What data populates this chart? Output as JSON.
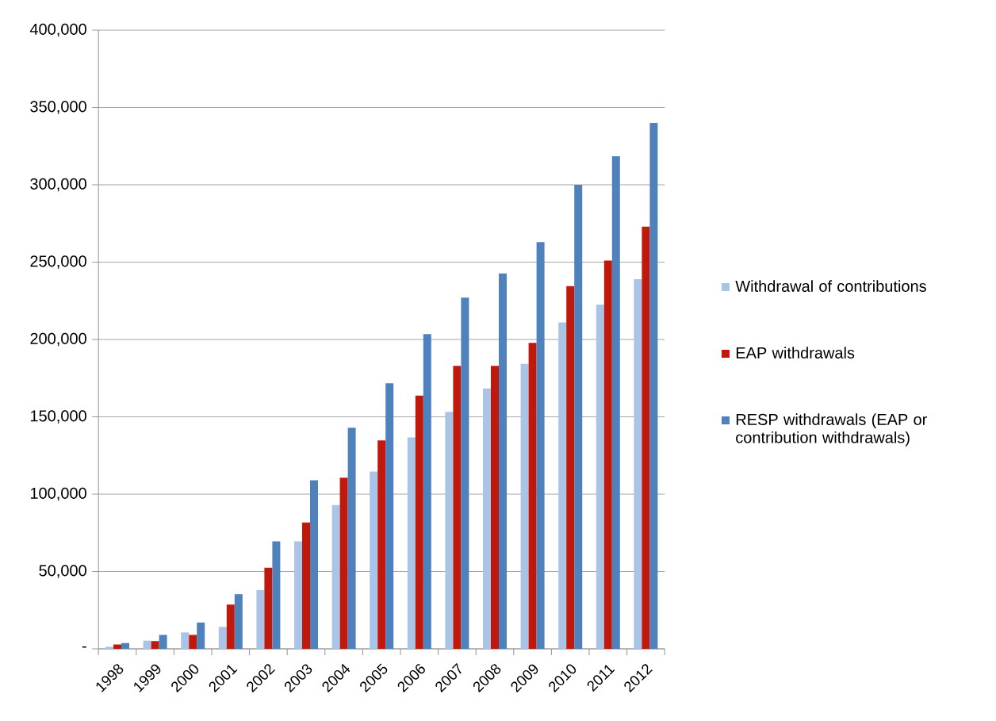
{
  "chart_data": {
    "type": "bar",
    "categories": [
      "1998",
      "1999",
      "2000",
      "2001",
      "2002",
      "2003",
      "2004",
      "2005",
      "2006",
      "2007",
      "2008",
      "2009",
      "2010",
      "2011",
      "2012"
    ],
    "series": [
      {
        "name": "Withdrawal of contributions",
        "color": "#a9c4e6",
        "values": [
          1300,
          5300,
          10600,
          14200,
          38000,
          69500,
          93000,
          114600,
          136700,
          153200,
          168300,
          184200,
          211000,
          222500,
          239000
        ]
      },
      {
        "name": "EAP withdrawals",
        "color": "#c0190b",
        "values": [
          2800,
          5000,
          9000,
          28600,
          52400,
          81700,
          110600,
          134700,
          163700,
          183000,
          183000,
          197800,
          234500,
          251000,
          273000
        ]
      },
      {
        "name": "RESP withdrawals (EAP or contribution withdrawals)",
        "color": "#4f81bd",
        "values": [
          3700,
          9000,
          17000,
          35300,
          69500,
          109000,
          143000,
          171700,
          203500,
          227000,
          242700,
          262900,
          300000,
          318500,
          340000
        ]
      }
    ],
    "ylim": [
      0,
      400000
    ],
    "yticks": [
      {
        "value": 0,
        "label": "-"
      },
      {
        "value": 50000,
        "label": "50,000"
      },
      {
        "value": 100000,
        "label": "100,000"
      },
      {
        "value": 150000,
        "label": "150,000"
      },
      {
        "value": 200000,
        "label": "200,000"
      },
      {
        "value": 250000,
        "label": "250,000"
      },
      {
        "value": 300000,
        "label": "300,000"
      },
      {
        "value": 350000,
        "label": "350,000"
      },
      {
        "value": 400000,
        "label": "400,000"
      }
    ],
    "grid": "y",
    "legend": "right"
  }
}
